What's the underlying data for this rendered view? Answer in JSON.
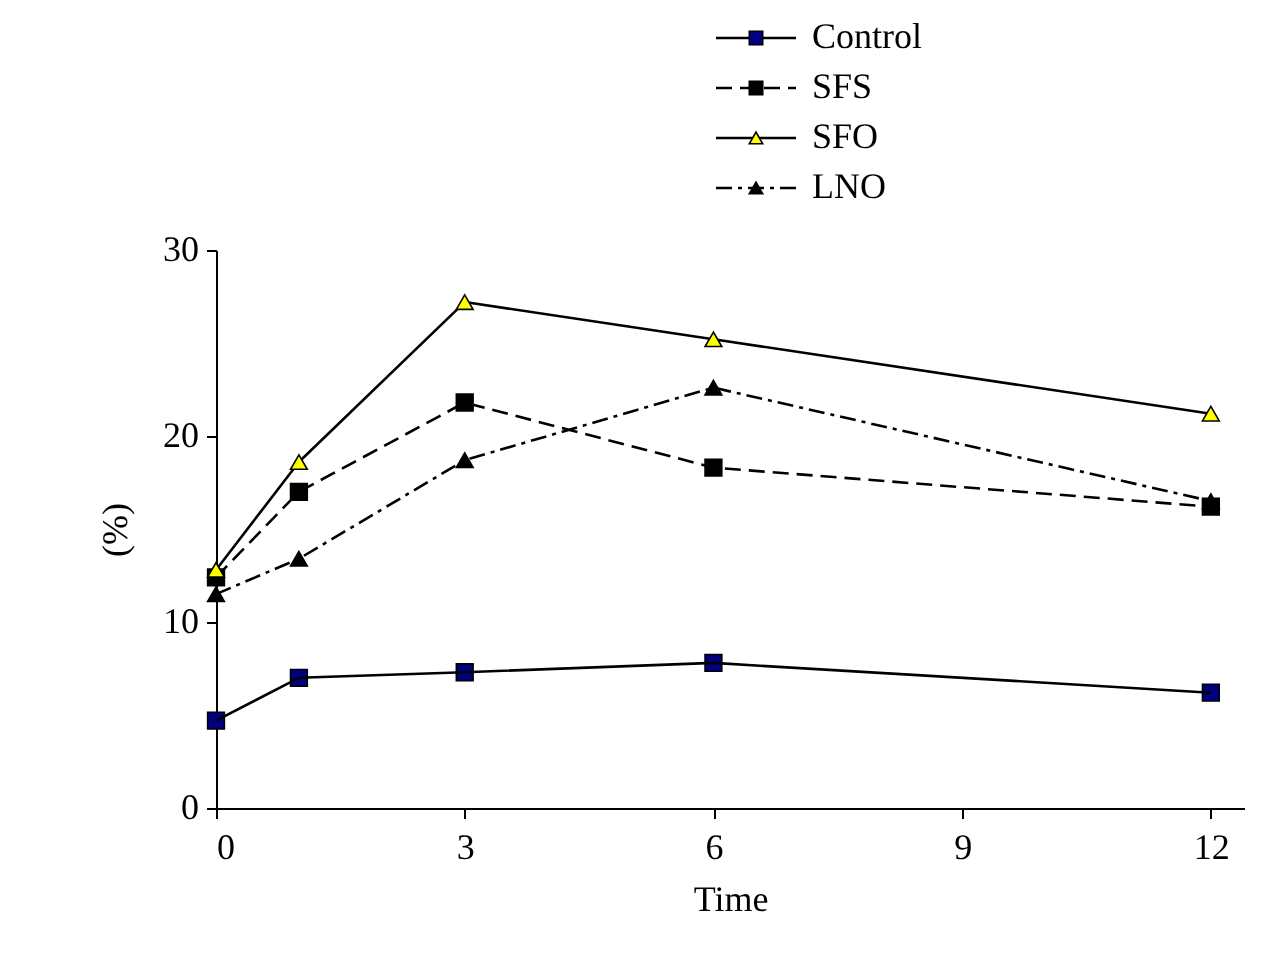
{
  "chart_data": {
    "type": "line",
    "xlabel": "Time",
    "ylabel": "(%)",
    "x": [
      0,
      1,
      3,
      6,
      12
    ],
    "series": [
      {
        "name": "Control",
        "color": "#000080",
        "marker": "square",
        "line_style": "solid",
        "values": [
          4.7,
          7.0,
          7.3,
          7.8,
          6.2
        ]
      },
      {
        "name": "SFS",
        "color": "#000000",
        "marker": "square",
        "line_style": "dashed",
        "values": [
          12.4,
          17.0,
          21.8,
          18.3,
          16.2
        ]
      },
      {
        "name": "SFO",
        "color": "#ffff00",
        "marker": "triangle",
        "line_style": "solid",
        "values": [
          12.8,
          18.6,
          27.2,
          25.2,
          21.2
        ]
      },
      {
        "name": "LNO",
        "color": "#000000",
        "marker": "triangle",
        "line_style": "dotted",
        "values": [
          11.5,
          13.4,
          18.7,
          22.6,
          16.5
        ]
      }
    ],
    "xlim": [
      0,
      12.4
    ],
    "xticks": [
      0,
      3,
      6,
      9,
      12
    ],
    "ylim": [
      0,
      30
    ],
    "yticks": [
      0,
      10,
      20,
      30
    ],
    "grid": false,
    "legend": "top right"
  }
}
